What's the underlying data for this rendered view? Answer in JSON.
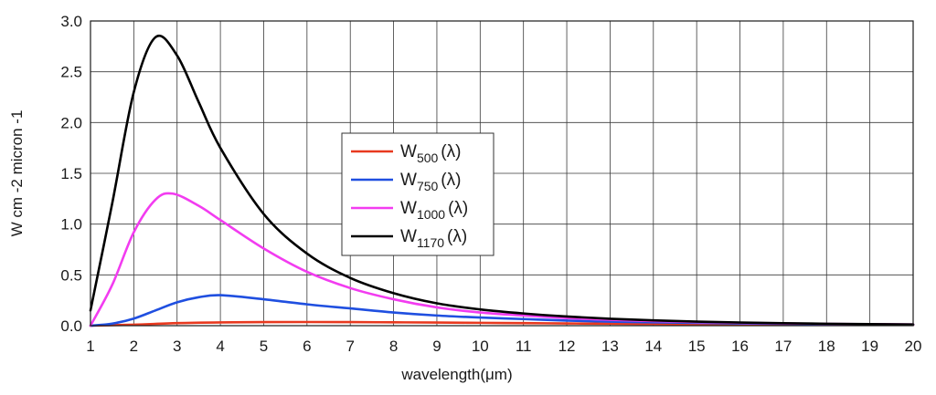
{
  "chart_data": {
    "type": "line",
    "xlabel": "wavelength(μm)",
    "ylabel": "W cm -2 micron -1",
    "xlim": [
      1,
      20
    ],
    "ylim": [
      0,
      3.0
    ],
    "x_ticks": [
      "1",
      "2",
      "3",
      "4",
      "5",
      "6",
      "7",
      "8",
      "9",
      "10",
      "11",
      "12",
      "13",
      "14",
      "15",
      "16",
      "17",
      "18",
      "19",
      "20"
    ],
    "y_ticks": [
      "0.0",
      "0.5",
      "1.0",
      "1.5",
      "2.0",
      "2.5",
      "3.0"
    ],
    "grid": true,
    "legend_position": "center",
    "series": [
      {
        "name_main": "W",
        "name_sub": "500",
        "name_suffix": "(λ)",
        "color": "#e8391f",
        "x": [
          1,
          2,
          3,
          4,
          5,
          6,
          7,
          8,
          9,
          10,
          11,
          12,
          13,
          14,
          15,
          16,
          17,
          18,
          19,
          20
        ],
        "y": [
          0.0,
          0.01,
          0.025,
          0.032,
          0.035,
          0.036,
          0.035,
          0.033,
          0.031,
          0.028,
          0.025,
          0.022,
          0.019,
          0.017,
          0.015,
          0.013,
          0.011,
          0.01,
          0.009,
          0.008
        ]
      },
      {
        "name_main": "W",
        "name_sub": "750",
        "name_suffix": "(λ)",
        "color": "#1f4fe0",
        "x": [
          1,
          1.5,
          2,
          2.5,
          3,
          3.5,
          4,
          5,
          6,
          7,
          8,
          9,
          10,
          11,
          12,
          13,
          14,
          15,
          16,
          17,
          18,
          19,
          20
        ],
        "y": [
          0.0,
          0.02,
          0.07,
          0.15,
          0.23,
          0.28,
          0.3,
          0.26,
          0.21,
          0.17,
          0.13,
          0.1,
          0.08,
          0.065,
          0.05,
          0.04,
          0.033,
          0.027,
          0.022,
          0.018,
          0.015,
          0.012,
          0.01
        ]
      },
      {
        "name_main": "W",
        "name_sub": "1000",
        "name_suffix": "(λ)",
        "color": "#f23cf0",
        "x": [
          1,
          1.5,
          2,
          2.5,
          2.9,
          3.5,
          4,
          5,
          6,
          7,
          8,
          9,
          10,
          11,
          12,
          13,
          14,
          15,
          16,
          17,
          18,
          19,
          20
        ],
        "y": [
          0.0,
          0.4,
          0.92,
          1.24,
          1.3,
          1.18,
          1.04,
          0.76,
          0.53,
          0.37,
          0.26,
          0.18,
          0.13,
          0.1,
          0.075,
          0.058,
          0.045,
          0.035,
          0.028,
          0.022,
          0.018,
          0.015,
          0.012
        ]
      },
      {
        "name_main": "W",
        "name_sub": "1170",
        "name_suffix": "(λ)",
        "color": "#000000",
        "x": [
          1,
          1.5,
          2,
          2.5,
          3,
          3.5,
          4,
          5,
          6,
          7,
          8,
          9,
          10,
          11,
          12,
          13,
          14,
          15,
          16,
          17,
          18,
          19,
          20
        ],
        "y": [
          0.15,
          1.2,
          2.3,
          2.84,
          2.66,
          2.2,
          1.75,
          1.1,
          0.71,
          0.47,
          0.32,
          0.22,
          0.16,
          0.12,
          0.09,
          0.068,
          0.052,
          0.04,
          0.031,
          0.024,
          0.019,
          0.015,
          0.012
        ]
      }
    ]
  }
}
